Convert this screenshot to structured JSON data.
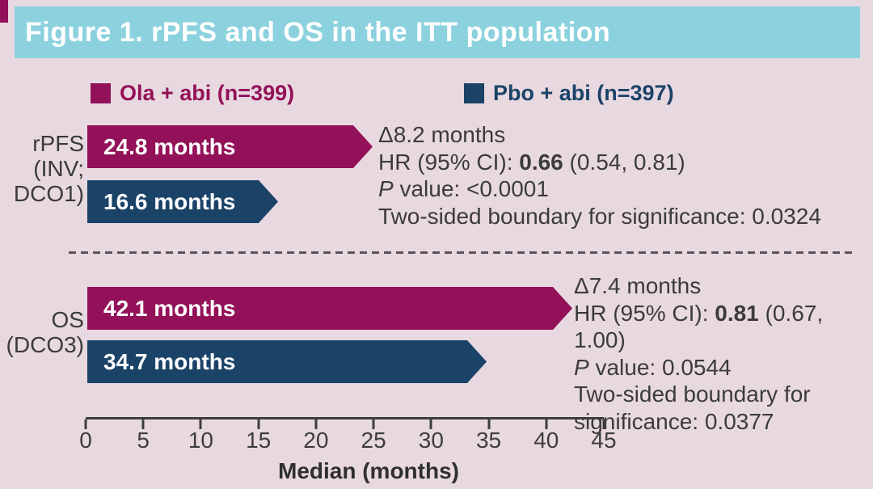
{
  "title": "Figure 1. rPFS and OS in the ITT population",
  "colors": {
    "page_background": "#E8D9E1",
    "title_bar_background": "#8CD2DE",
    "title_text": "#FFFFFF",
    "ola_magenta": "#931158",
    "pbo_navy": "#1B4368",
    "body_text": "#3B3B3B",
    "corner_accent": "#931158"
  },
  "legend": {
    "items": [
      {
        "label": "Ola + abi (n=399)",
        "color": "#931158"
      },
      {
        "label": "Pbo + abi (n=397)",
        "color": "#1B4368"
      }
    ]
  },
  "chart_data": {
    "type": "bar",
    "orientation": "horizontal",
    "title": "Figure 1. rPFS and OS in the ITT population",
    "categories": [
      "rPFS (INV; DCO1)",
      "OS (DCO3)"
    ],
    "series": [
      {
        "name": "Ola + abi (n=399)",
        "color": "#931158",
        "values": [
          24.8,
          42.1
        ]
      },
      {
        "name": "Pbo + abi (n=397)",
        "color": "#1B4368",
        "values": [
          16.6,
          34.7
        ]
      }
    ],
    "value_unit": "months",
    "xlabel": "Median (months)",
    "xlim": [
      0,
      45
    ],
    "xticks": [
      0,
      5,
      10,
      15,
      20,
      25,
      30,
      35,
      40,
      45
    ],
    "legend_position": "top",
    "grid": false,
    "annotations": [
      {
        "category": "rPFS (INV; DCO1)",
        "delta_months": 8.2,
        "hr": 0.66,
        "ci_95": "(0.54, 0.81)",
        "p_value": "<0.0001",
        "two_sided_boundary": 0.0324
      },
      {
        "category": "OS (DCO3)",
        "delta_months": 7.4,
        "hr": 0.81,
        "ci_95": "(0.67, 1.00)",
        "p_value": "0.0544",
        "two_sided_boundary": 0.0377
      }
    ]
  },
  "groups": [
    {
      "label_lines": [
        "rPFS",
        "(INV;",
        "DCO1)"
      ],
      "bars": [
        {
          "series": "Ola + abi",
          "value": 24.8,
          "label": "24.8 months",
          "color": "#931158"
        },
        {
          "series": "Pbo + abi",
          "value": 16.6,
          "label": "16.6 months",
          "color": "#1B4368"
        }
      ],
      "annotation": {
        "delta": "Δ8.2 months",
        "hr_prefix": "HR (95% CI): ",
        "hr_value": "0.66",
        "hr_ci": " (0.54, 0.81)",
        "p_symbol": "P",
        "p_rest": " value: <0.0001",
        "boundary_line1": "Two-sided boundary for significance: 0.0324"
      }
    },
    {
      "label_lines": [
        "OS",
        "(DCO3)"
      ],
      "bars": [
        {
          "series": "Ola + abi",
          "value": 42.1,
          "label": "42.1 months",
          "color": "#931158"
        },
        {
          "series": "Pbo + abi",
          "value": 34.7,
          "label": "34.7 months",
          "color": "#1B4368"
        }
      ],
      "annotation": {
        "delta": "Δ7.4 months",
        "hr_prefix": "HR (95% CI): ",
        "hr_value": "0.81",
        "hr_ci": " (0.67, 1.00)",
        "p_symbol": "P",
        "p_rest": " value: 0.0544",
        "boundary_line1": "Two-sided boundary for",
        "boundary_line2": "significance: 0.0377"
      }
    }
  ],
  "axis": {
    "ticks": [
      "0",
      "5",
      "10",
      "15",
      "20",
      "25",
      "30",
      "35",
      "40",
      "45"
    ],
    "label": "Median (months)"
  }
}
